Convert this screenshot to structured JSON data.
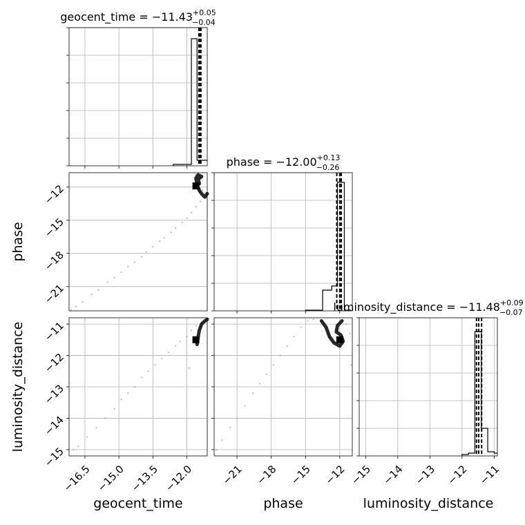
{
  "chart_data": [
    {
      "type": "histogram",
      "panel": "geocent_time",
      "title": {
        "label": "geocent_time = −11.43",
        "sup": "+0.05",
        "sub": "−0.04"
      },
      "xlim": [
        -17.2,
        -11.1
      ],
      "xticks": [
        -16.5,
        -15.0,
        -13.5,
        -12.0
      ],
      "grid": true,
      "bins": [
        [
          -12.6,
          -12.05,
          0.01
        ],
        [
          -12.05,
          -11.8,
          0.01
        ],
        [
          -11.8,
          -11.55,
          0.92
        ],
        [
          -11.55,
          -11.3,
          0.04
        ],
        [
          -11.3,
          -11.1,
          0.04
        ]
      ],
      "quantile_lines": [
        -11.47,
        -11.43,
        -11.38
      ]
    },
    {
      "type": "histogram",
      "panel": "phase",
      "title": {
        "label": "phase = −12.00",
        "sup": "+0.13",
        "sub": "−0.26"
      },
      "xlim": [
        -23.0,
        -10.9
      ],
      "xticks": [
        -21,
        -18,
        -15,
        -12
      ],
      "grid": true,
      "bins": [
        [
          -15.0,
          -13.5,
          0.005
        ],
        [
          -13.5,
          -12.7,
          0.15
        ],
        [
          -12.7,
          -12.2,
          0.18
        ],
        [
          -12.2,
          -11.6,
          0.93
        ],
        [
          -11.6,
          -11.0,
          0.005
        ]
      ],
      "quantile_lines": [
        -12.26,
        -12.0,
        -11.87
      ]
    },
    {
      "type": "histogram",
      "panel": "luminosity_distance",
      "title": {
        "label": "luminosity_distance = −11.48",
        "sup": "+0.09",
        "sub": "−0.07"
      },
      "xlim": [
        -15.2,
        -10.9
      ],
      "xticks": [
        -15,
        -14,
        -13,
        -12,
        -11
      ],
      "grid": true,
      "bins": [
        [
          -12.0,
          -11.8,
          0.01
        ],
        [
          -11.8,
          -11.6,
          0.02
        ],
        [
          -11.6,
          -11.4,
          0.9
        ],
        [
          -11.4,
          -11.2,
          0.2
        ],
        [
          -11.2,
          -11.0,
          0.03
        ],
        [
          -11.0,
          -10.9,
          0.02
        ]
      ],
      "quantile_lines": [
        -11.55,
        -11.48,
        -11.39
      ]
    },
    {
      "type": "scatter",
      "panel": "phase vs geocent_time",
      "xlabel": "",
      "ylabel": "phase",
      "xlim": [
        -17.2,
        -11.1
      ],
      "ylim": [
        -23.2,
        -10.7
      ],
      "yticks": [
        -12,
        -15,
        -18,
        -21
      ],
      "grid": true,
      "points": [
        [
          -17.1,
          -23.1
        ],
        [
          -16.9,
          -22.8
        ],
        [
          -16.6,
          -22.4
        ],
        [
          -16.2,
          -21.7
        ],
        [
          -15.9,
          -21.3
        ],
        [
          -15.5,
          -20.6
        ],
        [
          -15.2,
          -20.2
        ],
        [
          -14.9,
          -19.7
        ],
        [
          -14.6,
          -19.2
        ],
        [
          -14.3,
          -18.8
        ],
        [
          -14.0,
          -18.3
        ],
        [
          -13.8,
          -17.9
        ],
        [
          -13.5,
          -17.4
        ],
        [
          -13.2,
          -16.9
        ],
        [
          -13.0,
          -16.6
        ],
        [
          -12.7,
          -16.1
        ],
        [
          -12.5,
          -15.7
        ],
        [
          -12.2,
          -15.2
        ],
        [
          -12.0,
          -14.8
        ],
        [
          -11.8,
          -14.3
        ],
        [
          -11.6,
          -13.8
        ],
        [
          -11.4,
          -13.3
        ],
        [
          -11.3,
          -12.9
        ],
        [
          -11.2,
          -12.5
        ],
        [
          -11.3,
          -12.3
        ],
        [
          -11.5,
          -11.8
        ],
        [
          -11.4,
          -11.2
        ],
        [
          -11.6,
          -10.9
        ]
      ],
      "dense_curve": [
        [
          -11.45,
          -11.7
        ],
        [
          -11.5,
          -11.3
        ],
        [
          -11.35,
          -11.05
        ],
        [
          -11.5,
          -10.9
        ],
        [
          -11.6,
          -11.2
        ],
        [
          -11.55,
          -11.8
        ],
        [
          -11.45,
          -12.3
        ],
        [
          -11.35,
          -12.6
        ],
        [
          -11.2,
          -12.9
        ],
        [
          -11.1,
          -12.6
        ]
      ],
      "truth_marker": [
        -11.6,
        -11.9
      ]
    },
    {
      "type": "scatter",
      "panel": "luminosity_distance vs geocent_time",
      "xlabel": "geocent_time",
      "ylabel": "luminosity_distance",
      "xlim": [
        -17.2,
        -11.1
      ],
      "ylim": [
        -15.2,
        -10.8
      ],
      "xticks": [
        -16.5,
        -15.0,
        -13.5,
        -12.0
      ],
      "yticks": [
        -11,
        -12,
        -13,
        -14,
        -15
      ],
      "grid": true,
      "points": [
        [
          -17.0,
          -15.0
        ],
        [
          -16.8,
          -14.9
        ],
        [
          -16.4,
          -14.6
        ],
        [
          -16.0,
          -14.3
        ],
        [
          -15.6,
          -14.0
        ],
        [
          -15.2,
          -13.7
        ],
        [
          -14.9,
          -13.4
        ],
        [
          -14.6,
          -13.2
        ],
        [
          -14.3,
          -13.0
        ],
        [
          -14.0,
          -12.7
        ],
        [
          -13.7,
          -12.5
        ],
        [
          -13.4,
          -12.3
        ],
        [
          -13.1,
          -12.1
        ],
        [
          -12.8,
          -11.9
        ],
        [
          -12.5,
          -11.7
        ],
        [
          -12.3,
          -11.55
        ],
        [
          -12.0,
          -11.4
        ],
        [
          -11.9,
          -12.4
        ],
        [
          -11.8,
          -11.2
        ],
        [
          -11.6,
          -11.05
        ]
      ],
      "dense_curve": [
        [
          -11.55,
          -11.65
        ],
        [
          -11.5,
          -11.4
        ],
        [
          -11.45,
          -11.2
        ],
        [
          -11.35,
          -11.0
        ],
        [
          -11.2,
          -10.9
        ],
        [
          -11.1,
          -10.85
        ]
      ],
      "truth_marker": [
        -11.6,
        -11.5
      ]
    },
    {
      "type": "scatter",
      "panel": "luminosity_distance vs phase",
      "xlabel": "phase",
      "xlim": [
        -23.0,
        -10.9
      ],
      "ylim": [
        -15.2,
        -10.8
      ],
      "xticks": [
        -21,
        -18,
        -15,
        -12
      ],
      "grid": true,
      "points": [
        [
          -22.8,
          -15.0
        ],
        [
          -22.3,
          -14.7
        ],
        [
          -21.6,
          -14.3
        ],
        [
          -21.0,
          -14.0
        ],
        [
          -20.3,
          -13.6
        ],
        [
          -19.6,
          -13.2
        ],
        [
          -19.0,
          -12.9
        ],
        [
          -18.4,
          -12.6
        ],
        [
          -17.8,
          -12.3
        ],
        [
          -17.2,
          -12.0
        ],
        [
          -16.6,
          -11.7
        ],
        [
          -16.0,
          -11.4
        ],
        [
          -15.4,
          -11.1
        ],
        [
          -14.8,
          -10.9
        ],
        [
          -14.3,
          -10.85
        ],
        [
          -11.4,
          -11.0
        ],
        [
          -11.1,
          -11.3
        ],
        [
          -11.0,
          -12.3
        ]
      ],
      "dense_curve": [
        [
          -13.6,
          -10.9
        ],
        [
          -13.2,
          -11.1
        ],
        [
          -12.9,
          -11.4
        ],
        [
          -12.5,
          -11.6
        ],
        [
          -12.0,
          -11.7
        ],
        [
          -11.7,
          -11.55
        ],
        [
          -11.9,
          -11.35
        ],
        [
          -12.3,
          -11.25
        ],
        [
          -12.2,
          -11.05
        ],
        [
          -11.8,
          -10.9
        ]
      ],
      "truth_marker": [
        -12.0,
        -11.5
      ]
    }
  ]
}
